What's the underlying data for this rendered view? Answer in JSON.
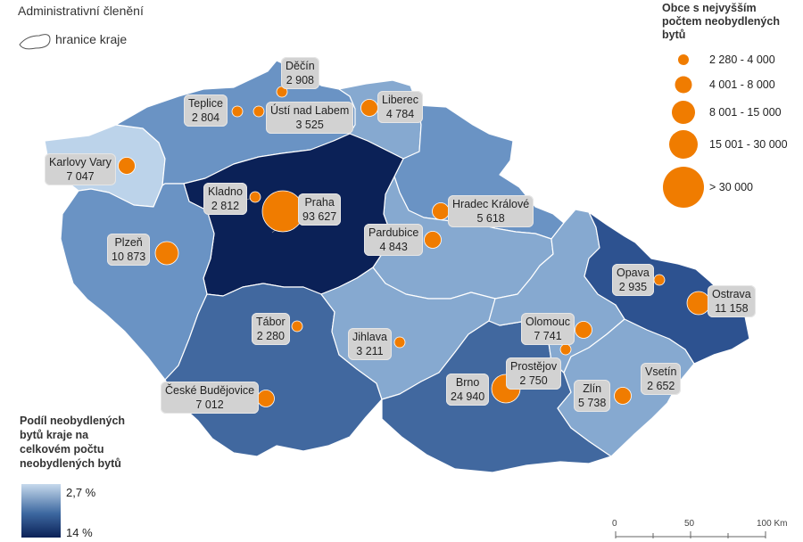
{
  "legend": {
    "admin_title": "Administrativní členění",
    "border_label": "hranice kraje",
    "bubble_title_lines": [
      "Obce s nejvyšším",
      "počtem neobydlených",
      "bytů"
    ],
    "bubble_classes": [
      "2 280 - 4 000",
      "4 001 - 8 000",
      "8 001 - 15 000",
      "15 001 - 30 000",
      "> 30 000"
    ],
    "share_title_lines": [
      "Podíl neobydlených",
      "bytů kraje na",
      "celkovém počtu",
      "neobydlených bytů"
    ],
    "ramp_min": "2,7 %",
    "ramp_max": "14 %"
  },
  "scale_bar": {
    "ticks": [
      "0",
      "50",
      "100 Km"
    ]
  },
  "colors": {
    "bubble": "#f07c00",
    "region_lightest": "#bcd3ea",
    "region_light": "#86a9d0",
    "region_mid": "#6a93c4",
    "region_dark": "#41689f",
    "region_darker": "#2d5290",
    "region_darkest": "#0b2157"
  },
  "regions": [
    {
      "id": "karlovarsky",
      "shade": "region_lightest"
    },
    {
      "id": "ustecky",
      "shade": "region_mid"
    },
    {
      "id": "liberecky",
      "shade": "region_light"
    },
    {
      "id": "kralovehradecky",
      "shade": "region_mid"
    },
    {
      "id": "pardubicky",
      "shade": "region_light"
    },
    {
      "id": "stredocesky",
      "shade": "region_darkest"
    },
    {
      "id": "plzensky",
      "shade": "region_mid"
    },
    {
      "id": "jihocesky",
      "shade": "region_dark"
    },
    {
      "id": "vysocina",
      "shade": "region_light"
    },
    {
      "id": "jihomoravsky",
      "shade": "region_dark"
    },
    {
      "id": "olomoucky",
      "shade": "region_light"
    },
    {
      "id": "zlinsky",
      "shade": "region_light"
    },
    {
      "id": "moravskoslezsky",
      "shade": "region_darker"
    }
  ],
  "cities": [
    {
      "name": "Děčín",
      "value": "2 908",
      "size_class": 1
    },
    {
      "name": "Teplice",
      "value": "2 804",
      "size_class": 1
    },
    {
      "name": "Ústí nad Labem",
      "value": "3 525",
      "size_class": 1
    },
    {
      "name": "Liberec",
      "value": "4 784",
      "size_class": 2
    },
    {
      "name": "Karlovy Vary",
      "value": "7 047",
      "size_class": 2
    },
    {
      "name": "Kladno",
      "value": "2 812",
      "size_class": 1
    },
    {
      "name": "Praha",
      "value": "93 627",
      "size_class": 5
    },
    {
      "name": "Hradec Králové",
      "value": "5 618",
      "size_class": 2
    },
    {
      "name": "Pardubice",
      "value": "4 843",
      "size_class": 2
    },
    {
      "name": "Plzeň",
      "value": "10 873",
      "size_class": 3
    },
    {
      "name": "Opava",
      "value": "2 935",
      "size_class": 1
    },
    {
      "name": "Ostrava",
      "value": "11 158",
      "size_class": 3
    },
    {
      "name": "Tábor",
      "value": "2 280",
      "size_class": 1
    },
    {
      "name": "Olomouc",
      "value": "7 741",
      "size_class": 2
    },
    {
      "name": "Jihlava",
      "value": "3 211",
      "size_class": 1
    },
    {
      "name": "Prostějov",
      "value": "2 750",
      "size_class": 1
    },
    {
      "name": "Vsetín",
      "value": "2 652",
      "size_class": 1
    },
    {
      "name": "Brno",
      "value": "24 940",
      "size_class": 4
    },
    {
      "name": "Zlín",
      "value": "5 738",
      "size_class": 2
    },
    {
      "name": "České Budějovice",
      "value": "7 012",
      "size_class": 2
    }
  ]
}
